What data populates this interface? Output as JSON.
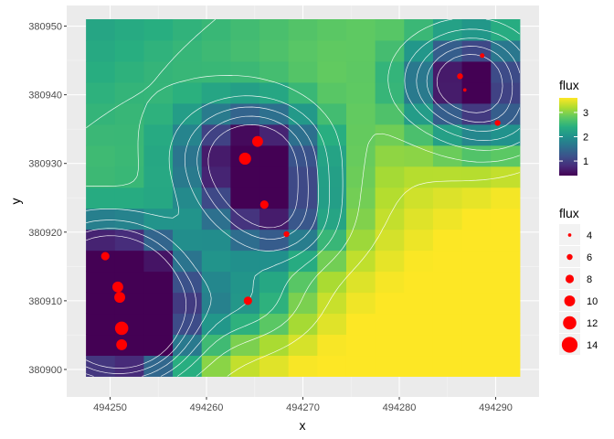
{
  "chart_data": {
    "type": "heatmap",
    "xlabel": "x",
    "ylabel": "y",
    "xlim": [
      494245.5,
      494294.5
    ],
    "ylim": [
      380896,
      380953
    ],
    "x_ticks": [
      494250,
      494260,
      494270,
      494280,
      494290
    ],
    "x_tick_labels": [
      "494250",
      "494260",
      "494270",
      "494280",
      "494290"
    ],
    "y_ticks": [
      380900,
      380910,
      380920,
      380930,
      380940,
      380950
    ],
    "y_tick_labels": [
      "380900",
      "380910",
      "380920",
      "380930",
      "380940",
      "380950"
    ],
    "grid": true,
    "legend_position": "right",
    "fill_legend": {
      "title": "flux",
      "breaks": [
        1,
        2,
        3
      ],
      "labels": [
        "1",
        "2",
        "3"
      ],
      "range": [
        0.4,
        3.6
      ],
      "palette": "viridis"
    },
    "size_legend": {
      "title": "flux",
      "breaks": [
        4,
        6,
        8,
        10,
        12,
        14
      ],
      "labels": [
        "4",
        "6",
        "8",
        "10",
        "12",
        "14"
      ],
      "range": [
        3.5,
        14.5
      ]
    },
    "point_color": "#ff0000",
    "contour_color": "#ffffff",
    "grid_extent": {
      "x": [
        494247.5,
        494292.5
      ],
      "y": [
        380899,
        380951
      ]
    },
    "points": [
      {
        "x": 494249.5,
        "y": 380916.5,
        "flux": 8
      },
      {
        "x": 494250.8,
        "y": 380912,
        "flux": 10
      },
      {
        "x": 494251,
        "y": 380910.5,
        "flux": 10
      },
      {
        "x": 494251.2,
        "y": 380906,
        "flux": 12
      },
      {
        "x": 494251.2,
        "y": 380903.6,
        "flux": 10
      },
      {
        "x": 494264,
        "y": 380930.7,
        "flux": 11
      },
      {
        "x": 494265.3,
        "y": 380933.2,
        "flux": 10
      },
      {
        "x": 494266,
        "y": 380924,
        "flux": 8
      },
      {
        "x": 494268.3,
        "y": 380919.7,
        "flux": 6
      },
      {
        "x": 494264.3,
        "y": 380910,
        "flux": 8
      },
      {
        "x": 494288.6,
        "y": 380945.7,
        "flux": 5
      },
      {
        "x": 494286.3,
        "y": 380942.7,
        "flux": 6
      },
      {
        "x": 494286.8,
        "y": 380940.7,
        "flux": 4
      },
      {
        "x": 494290.2,
        "y": 380935.9,
        "flux": 6
      }
    ]
  }
}
